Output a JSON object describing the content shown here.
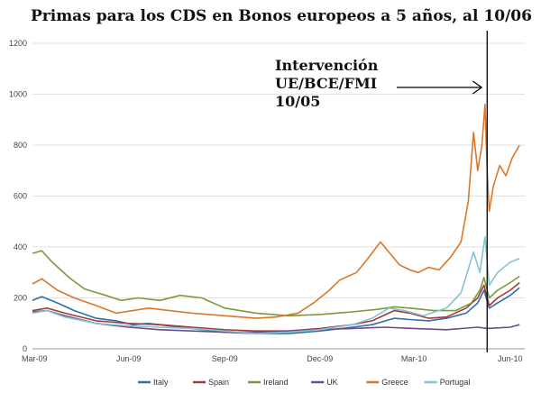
{
  "chart_data": {
    "type": "line",
    "title": "Primas para los CDS en Bonos europeos a 5 años, al 10/06",
    "x_ticks": [
      "Mar-09",
      "Jun-09",
      "Sep-09",
      "Dec-09",
      "Mar-10",
      "Jun-10"
    ],
    "y_ticks": [
      0,
      200,
      400,
      600,
      800,
      1000,
      1200
    ],
    "ylim": [
      0,
      1200
    ],
    "grid": "horizontal",
    "legend_position": "bottom",
    "annotation": {
      "lines": [
        "Intervención",
        "UE/BCE/FMI",
        "10/05"
      ],
      "x_date": "2010-05-10"
    },
    "series": [
      {
        "name": "Italy",
        "color": "#2e6fa7",
        "points": [
          [
            "2009-03-01",
            190
          ],
          [
            "2009-03-10",
            205
          ],
          [
            "2009-03-25",
            180
          ],
          [
            "2009-04-10",
            150
          ],
          [
            "2009-05-01",
            120
          ],
          [
            "2009-05-20",
            110
          ],
          [
            "2009-06-05",
            95
          ],
          [
            "2009-06-20",
            100
          ],
          [
            "2009-07-10",
            90
          ],
          [
            "2009-08-01",
            80
          ],
          [
            "2009-09-01",
            65
          ],
          [
            "2009-10-01",
            60
          ],
          [
            "2009-11-01",
            60
          ],
          [
            "2009-12-01",
            70
          ],
          [
            "2010-01-01",
            85
          ],
          [
            "2010-01-20",
            95
          ],
          [
            "2010-02-10",
            120
          ],
          [
            "2010-02-25",
            115
          ],
          [
            "2010-03-15",
            110
          ],
          [
            "2010-04-01",
            120
          ],
          [
            "2010-04-20",
            140
          ],
          [
            "2010-05-01",
            180
          ],
          [
            "2010-05-07",
            230
          ],
          [
            "2010-05-12",
            160
          ],
          [
            "2010-05-20",
            180
          ],
          [
            "2010-06-01",
            210
          ],
          [
            "2010-06-10",
            240
          ]
        ]
      },
      {
        "name": "Spain",
        "color": "#a23b3b",
        "points": [
          [
            "2009-03-01",
            150
          ],
          [
            "2009-03-15",
            160
          ],
          [
            "2009-04-01",
            140
          ],
          [
            "2009-05-01",
            110
          ],
          [
            "2009-06-01",
            100
          ],
          [
            "2009-07-01",
            95
          ],
          [
            "2009-08-01",
            85
          ],
          [
            "2009-09-01",
            75
          ],
          [
            "2009-10-01",
            70
          ],
          [
            "2009-11-01",
            70
          ],
          [
            "2009-12-01",
            80
          ],
          [
            "2010-01-01",
            95
          ],
          [
            "2010-01-20",
            110
          ],
          [
            "2010-02-10",
            150
          ],
          [
            "2010-02-25",
            140
          ],
          [
            "2010-03-15",
            120
          ],
          [
            "2010-04-01",
            125
          ],
          [
            "2010-04-20",
            160
          ],
          [
            "2010-05-01",
            200
          ],
          [
            "2010-05-07",
            250
          ],
          [
            "2010-05-12",
            170
          ],
          [
            "2010-05-20",
            200
          ],
          [
            "2010-06-01",
            230
          ],
          [
            "2010-06-10",
            260
          ]
        ]
      },
      {
        "name": "Ireland",
        "color": "#7a9a3c",
        "points": [
          [
            "2009-03-01",
            375
          ],
          [
            "2009-03-10",
            385
          ],
          [
            "2009-03-20",
            340
          ],
          [
            "2009-04-05",
            280
          ],
          [
            "2009-04-20",
            235
          ],
          [
            "2009-05-10",
            210
          ],
          [
            "2009-05-25",
            190
          ],
          [
            "2009-06-10",
            200
          ],
          [
            "2009-07-01",
            190
          ],
          [
            "2009-07-20",
            210
          ],
          [
            "2009-08-10",
            200
          ],
          [
            "2009-09-01",
            160
          ],
          [
            "2009-10-01",
            140
          ],
          [
            "2009-11-01",
            130
          ],
          [
            "2009-12-01",
            135
          ],
          [
            "2010-01-01",
            145
          ],
          [
            "2010-01-25",
            155
          ],
          [
            "2010-02-10",
            165
          ],
          [
            "2010-02-25",
            160
          ],
          [
            "2010-03-20",
            150
          ],
          [
            "2010-04-10",
            150
          ],
          [
            "2010-04-25",
            180
          ],
          [
            "2010-05-03",
            230
          ],
          [
            "2010-05-07",
            280
          ],
          [
            "2010-05-12",
            200
          ],
          [
            "2010-05-20",
            230
          ],
          [
            "2010-06-01",
            260
          ],
          [
            "2010-06-10",
            285
          ]
        ]
      },
      {
        "name": "UK",
        "color": "#6b4a8a",
        "points": [
          [
            "2009-03-01",
            145
          ],
          [
            "2009-03-15",
            150
          ],
          [
            "2009-04-01",
            130
          ],
          [
            "2009-05-01",
            100
          ],
          [
            "2009-06-01",
            85
          ],
          [
            "2009-07-01",
            75
          ],
          [
            "2009-08-01",
            70
          ],
          [
            "2009-09-01",
            65
          ],
          [
            "2009-10-01",
            65
          ],
          [
            "2009-11-01",
            70
          ],
          [
            "2009-12-01",
            75
          ],
          [
            "2010-01-01",
            80
          ],
          [
            "2010-02-01",
            85
          ],
          [
            "2010-03-01",
            80
          ],
          [
            "2010-04-01",
            75
          ],
          [
            "2010-05-01",
            85
          ],
          [
            "2010-05-10",
            80
          ],
          [
            "2010-06-01",
            85
          ],
          [
            "2010-06-10",
            95
          ]
        ]
      },
      {
        "name": "Greece",
        "color": "#d9782a",
        "points": [
          [
            "2009-03-01",
            255
          ],
          [
            "2009-03-10",
            275
          ],
          [
            "2009-03-25",
            230
          ],
          [
            "2009-04-10",
            200
          ],
          [
            "2009-05-01",
            170
          ],
          [
            "2009-05-20",
            140
          ],
          [
            "2009-06-05",
            150
          ],
          [
            "2009-06-20",
            160
          ],
          [
            "2009-07-10",
            150
          ],
          [
            "2009-08-01",
            140
          ],
          [
            "2009-09-01",
            130
          ],
          [
            "2009-10-01",
            120
          ],
          [
            "2009-10-20",
            125
          ],
          [
            "2009-11-10",
            140
          ],
          [
            "2009-11-25",
            180
          ],
          [
            "2009-12-10",
            230
          ],
          [
            "2009-12-20",
            270
          ],
          [
            "2010-01-05",
            300
          ],
          [
            "2010-01-15",
            350
          ],
          [
            "2010-01-28",
            420
          ],
          [
            "2010-02-05",
            380
          ],
          [
            "2010-02-15",
            330
          ],
          [
            "2010-02-25",
            310
          ],
          [
            "2010-03-05",
            300
          ],
          [
            "2010-03-15",
            320
          ],
          [
            "2010-03-25",
            310
          ],
          [
            "2010-04-05",
            360
          ],
          [
            "2010-04-15",
            420
          ],
          [
            "2010-04-22",
            580
          ],
          [
            "2010-04-27",
            850
          ],
          [
            "2010-05-01",
            700
          ],
          [
            "2010-05-05",
            800
          ],
          [
            "2010-05-08",
            960
          ],
          [
            "2010-05-10",
            700
          ],
          [
            "2010-05-12",
            540
          ],
          [
            "2010-05-16",
            640
          ],
          [
            "2010-05-22",
            720
          ],
          [
            "2010-05-28",
            680
          ],
          [
            "2010-06-03",
            750
          ],
          [
            "2010-06-10",
            800
          ]
        ]
      },
      {
        "name": "Portugal",
        "color": "#86c3d1",
        "points": [
          [
            "2009-03-01",
            140
          ],
          [
            "2009-03-15",
            150
          ],
          [
            "2009-04-01",
            125
          ],
          [
            "2009-05-01",
            100
          ],
          [
            "2009-06-01",
            90
          ],
          [
            "2009-07-01",
            85
          ],
          [
            "2009-08-01",
            80
          ],
          [
            "2009-09-01",
            70
          ],
          [
            "2009-10-01",
            60
          ],
          [
            "2009-11-01",
            65
          ],
          [
            "2009-12-01",
            75
          ],
          [
            "2010-01-01",
            95
          ],
          [
            "2010-01-20",
            120
          ],
          [
            "2010-02-05",
            160
          ],
          [
            "2010-02-20",
            150
          ],
          [
            "2010-03-10",
            130
          ],
          [
            "2010-04-01",
            160
          ],
          [
            "2010-04-15",
            220
          ],
          [
            "2010-04-27",
            380
          ],
          [
            "2010-05-03",
            300
          ],
          [
            "2010-05-08",
            440
          ],
          [
            "2010-05-12",
            250
          ],
          [
            "2010-05-20",
            300
          ],
          [
            "2010-06-01",
            340
          ],
          [
            "2010-06-10",
            355
          ]
        ]
      }
    ]
  }
}
